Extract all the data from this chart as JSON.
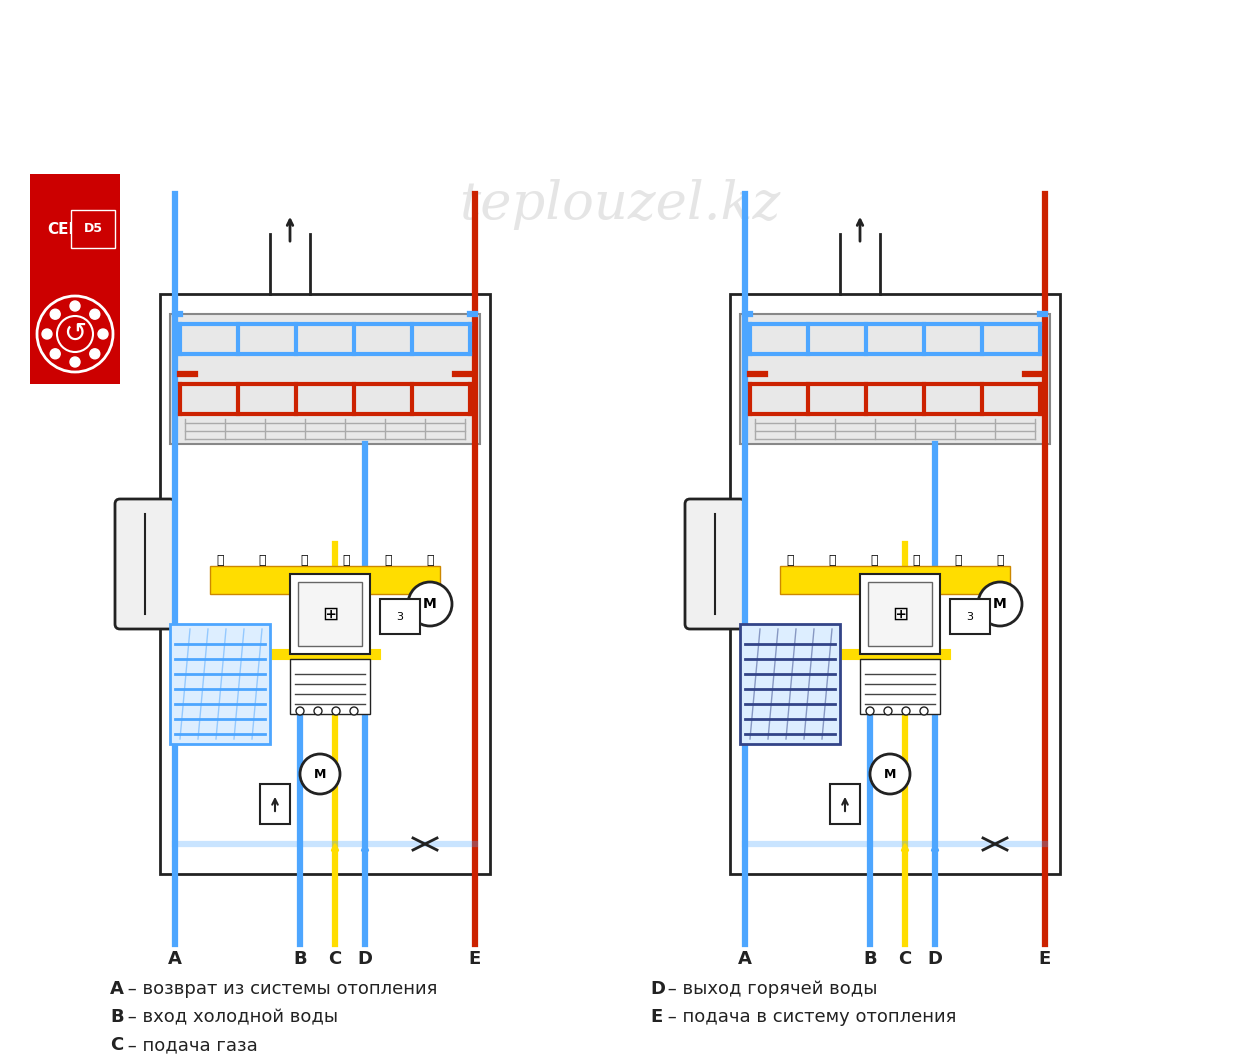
{
  "title": "",
  "background_color": "#ffffff",
  "watermark": "teplouzel.kz",
  "legend_labels": [
    "A",
    "B",
    "C",
    "D",
    "E"
  ],
  "legend_descriptions": [
    "A – возврат из системы отопления",
    "B – вход холодной воды",
    "C – подача газа",
    "D – выход горячей воды",
    "E – подача в систему отопления"
  ],
  "celtics_logo_color": "#cc0000",
  "blue_color": "#4da6ff",
  "red_color": "#cc2200",
  "yellow_color": "#ffdd00",
  "dark_color": "#222222"
}
